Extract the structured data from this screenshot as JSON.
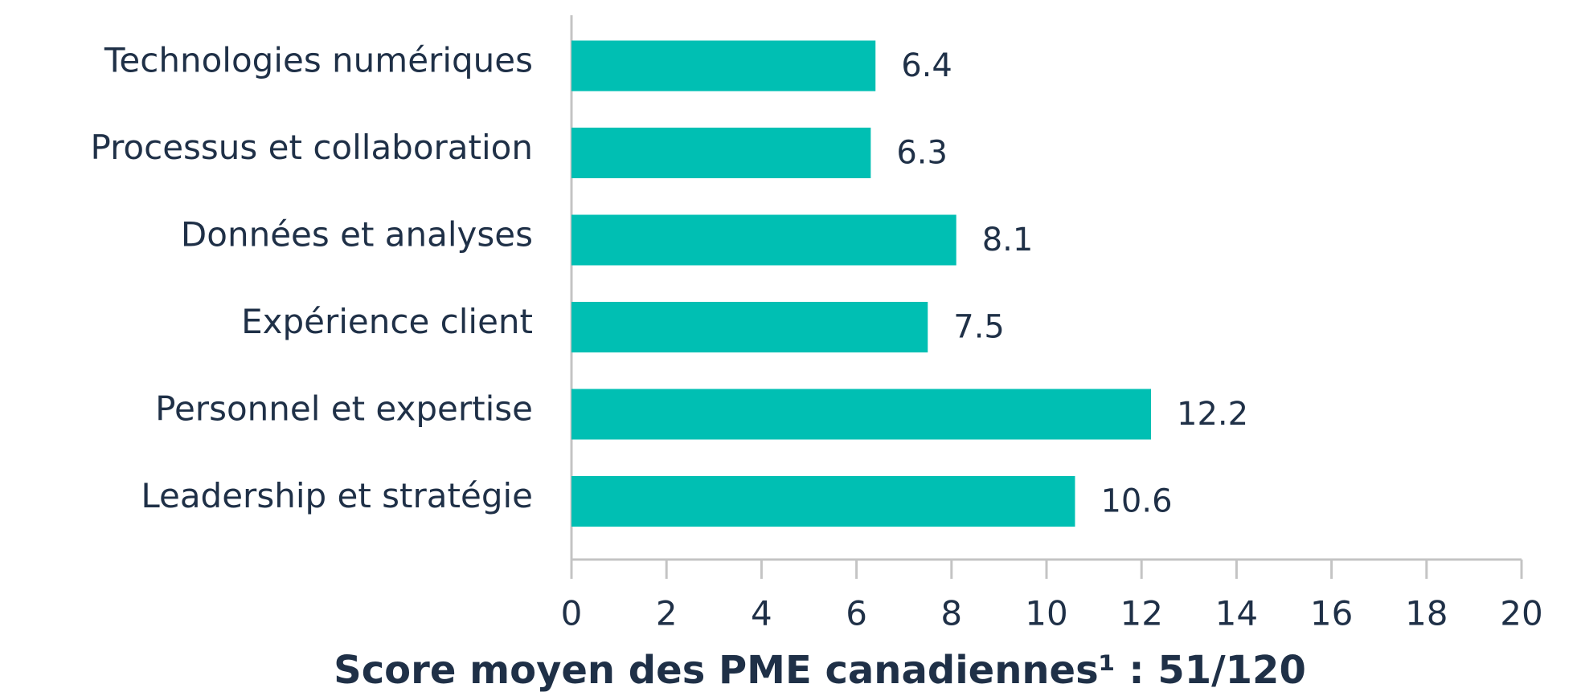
{
  "chart_data": {
    "type": "barh",
    "title": "Score moyen des PME canadiennes¹ : 51/120",
    "categories": [
      "Technologies numériques",
      "Processus et collaboration",
      "Données et analyses",
      "Expérience client",
      "Personnel et expertise",
      "Leadership et stratégie"
    ],
    "values": [
      6.4,
      6.3,
      8.1,
      7.5,
      12.2,
      10.6
    ],
    "color": "#00bfb3",
    "xlim": [
      0,
      20
    ],
    "xticks": [
      0,
      2,
      4,
      6,
      8,
      10,
      12,
      14,
      16,
      18,
      20
    ]
  }
}
